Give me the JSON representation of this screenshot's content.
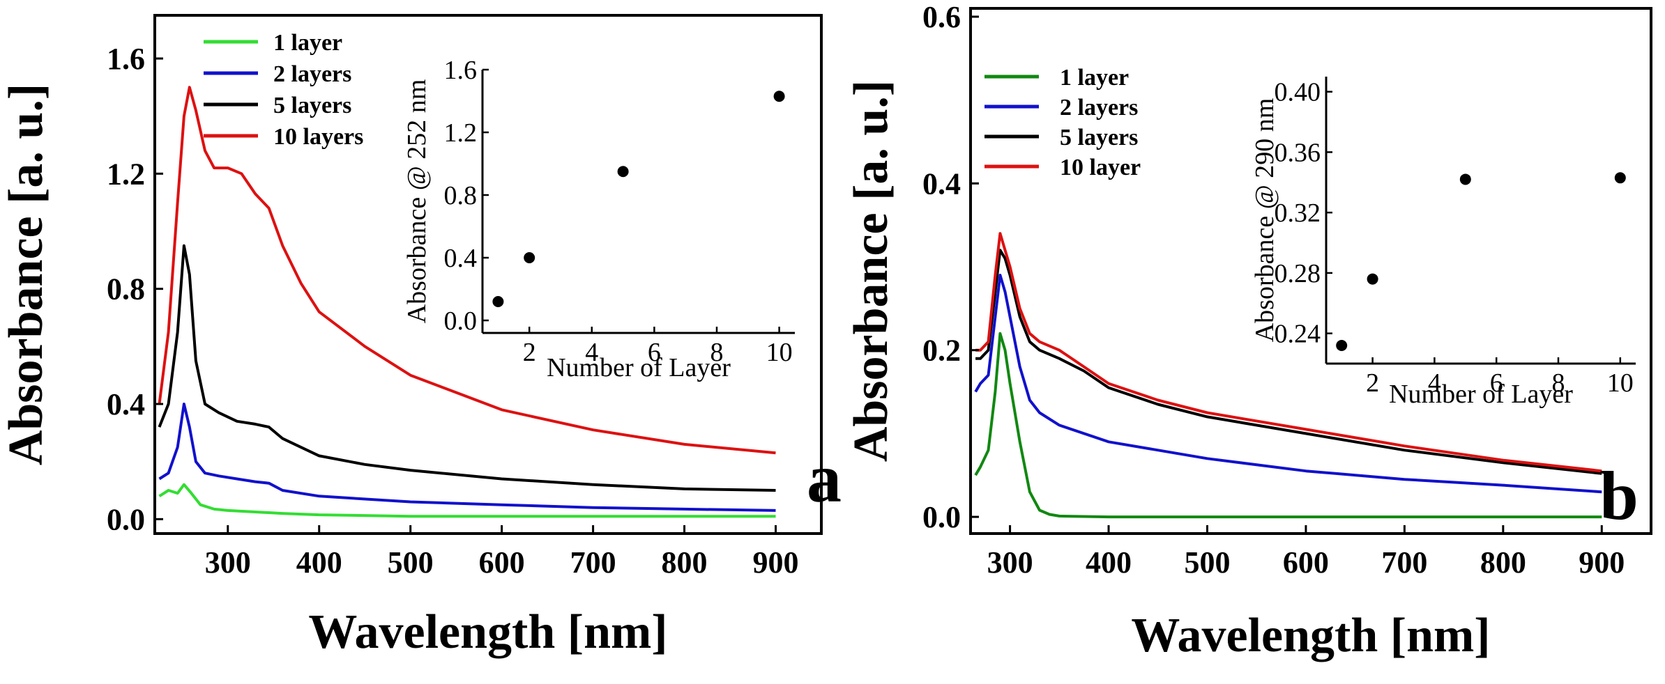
{
  "chart_data": [
    {
      "type": "line",
      "panel_label": "a",
      "xlabel": "Wavelength [nm]",
      "ylabel": "Absorbance [a. u.]",
      "xlim": [
        220,
        950
      ],
      "ylim": [
        -0.05,
        1.75
      ],
      "x_ticks": [
        300,
        400,
        500,
        600,
        700,
        800,
        900
      ],
      "y_ticks": [
        0.0,
        0.4,
        0.8,
        1.2,
        1.6
      ],
      "x_tick_labels": [
        "300",
        "400",
        "500",
        "600",
        "700",
        "800",
        "900"
      ],
      "y_tick_labels": [
        "0.0",
        "0.4",
        "0.8",
        "1.2",
        "1.6"
      ],
      "legend_position": "top-left",
      "series": [
        {
          "name": "1 layer",
          "color": "#33dd33",
          "x": [
            225,
            235,
            245,
            252,
            260,
            270,
            285,
            300,
            330,
            360,
            400,
            500,
            600,
            700,
            800,
            900
          ],
          "y": [
            0.08,
            0.1,
            0.09,
            0.12,
            0.09,
            0.05,
            0.035,
            0.03,
            0.025,
            0.02,
            0.015,
            0.01,
            0.01,
            0.01,
            0.01,
            0.01
          ]
        },
        {
          "name": "2 layers",
          "color": "#1111cc",
          "x": [
            225,
            235,
            245,
            252,
            258,
            265,
            275,
            290,
            310,
            330,
            345,
            360,
            400,
            500,
            600,
            700,
            800,
            900
          ],
          "y": [
            0.14,
            0.16,
            0.25,
            0.4,
            0.32,
            0.2,
            0.16,
            0.15,
            0.14,
            0.13,
            0.125,
            0.1,
            0.08,
            0.06,
            0.05,
            0.04,
            0.035,
            0.03
          ]
        },
        {
          "name": "5 layers",
          "color": "#000000",
          "x": [
            225,
            235,
            245,
            252,
            258,
            265,
            275,
            290,
            310,
            330,
            345,
            360,
            400,
            450,
            500,
            600,
            700,
            800,
            900
          ],
          "y": [
            0.32,
            0.4,
            0.65,
            0.95,
            0.85,
            0.55,
            0.4,
            0.37,
            0.34,
            0.33,
            0.32,
            0.28,
            0.22,
            0.19,
            0.17,
            0.14,
            0.12,
            0.105,
            0.1
          ]
        },
        {
          "name": "10 layers",
          "color": "#dd1111",
          "x": [
            225,
            235,
            245,
            252,
            258,
            265,
            275,
            285,
            300,
            315,
            330,
            345,
            360,
            380,
            400,
            450,
            500,
            550,
            600,
            700,
            800,
            900
          ],
          "y": [
            0.4,
            0.65,
            1.1,
            1.4,
            1.5,
            1.42,
            1.28,
            1.22,
            1.22,
            1.2,
            1.13,
            1.08,
            0.95,
            0.82,
            0.72,
            0.6,
            0.5,
            0.44,
            0.38,
            0.31,
            0.26,
            0.23
          ]
        }
      ],
      "inset": {
        "type": "scatter",
        "xlabel": "Number of Layer",
        "ylabel": "Absorbance @ 252 nm",
        "xlim": [
          0.5,
          10.5
        ],
        "ylim": [
          -0.08,
          1.6
        ],
        "x_ticks": [
          2,
          4,
          6,
          8,
          10
        ],
        "y_ticks": [
          0.0,
          0.4,
          0.8,
          1.2,
          1.6
        ],
        "x_tick_labels": [
          "2",
          "4",
          "6",
          "8",
          "10"
        ],
        "y_tick_labels": [
          "0.0",
          "0.4",
          "0.8",
          "1.2",
          "1.6"
        ],
        "x": [
          1,
          2,
          5,
          10
        ],
        "y": [
          0.12,
          0.4,
          0.95,
          1.43
        ]
      }
    },
    {
      "type": "line",
      "panel_label": "b",
      "xlabel": "Wavelength [nm]",
      "ylabel": "Absorbance [a. u.]",
      "xlim": [
        260,
        950
      ],
      "ylim": [
        -0.02,
        0.61
      ],
      "x_ticks": [
        300,
        400,
        500,
        600,
        700,
        800,
        900
      ],
      "y_ticks": [
        0.0,
        0.2,
        0.4,
        0.6
      ],
      "x_tick_labels": [
        "300",
        "400",
        "500",
        "600",
        "700",
        "800",
        "900"
      ],
      "y_tick_labels": [
        "0.0",
        "0.2",
        "0.4",
        "0.6"
      ],
      "legend_position": "top-left",
      "series": [
        {
          "name": "1  layer",
          "color": "#118811",
          "x": [
            265,
            270,
            278,
            285,
            290,
            295,
            300,
            310,
            320,
            330,
            340,
            350,
            400,
            500,
            600,
            700,
            800,
            900
          ],
          "y": [
            0.05,
            0.06,
            0.08,
            0.15,
            0.22,
            0.2,
            0.16,
            0.09,
            0.03,
            0.008,
            0.003,
            0.001,
            0.0,
            0.0,
            0.0,
            0.0,
            0.0,
            0.0
          ]
        },
        {
          "name": "2  layers",
          "color": "#1111cc",
          "x": [
            265,
            270,
            278,
            285,
            290,
            295,
            300,
            310,
            320,
            330,
            350,
            400,
            500,
            600,
            700,
            800,
            900
          ],
          "y": [
            0.15,
            0.16,
            0.17,
            0.24,
            0.29,
            0.27,
            0.24,
            0.18,
            0.14,
            0.125,
            0.11,
            0.09,
            0.07,
            0.055,
            0.045,
            0.038,
            0.03
          ]
        },
        {
          "name": " 5  layers",
          "color": "#000000",
          "x": [
            265,
            270,
            278,
            285,
            290,
            295,
            300,
            310,
            320,
            330,
            350,
            375,
            400,
            450,
            500,
            600,
            700,
            800,
            900
          ],
          "y": [
            0.19,
            0.19,
            0.2,
            0.27,
            0.32,
            0.31,
            0.29,
            0.24,
            0.21,
            0.2,
            0.19,
            0.175,
            0.155,
            0.135,
            0.12,
            0.1,
            0.08,
            0.065,
            0.052
          ]
        },
        {
          "name": "10  layer",
          "color": "#dd1111",
          "x": [
            265,
            270,
            278,
            285,
            290,
            295,
            300,
            310,
            320,
            330,
            350,
            375,
            400,
            450,
            500,
            600,
            700,
            800,
            900
          ],
          "y": [
            0.2,
            0.2,
            0.21,
            0.29,
            0.34,
            0.32,
            0.3,
            0.25,
            0.22,
            0.21,
            0.2,
            0.18,
            0.16,
            0.14,
            0.125,
            0.105,
            0.085,
            0.068,
            0.055
          ]
        }
      ],
      "inset": {
        "type": "scatter",
        "xlabel": "Number of Layer",
        "ylabel": "Absorbance @ 290 nm",
        "xlim": [
          0.5,
          10.5
        ],
        "ylim": [
          0.22,
          0.41
        ],
        "x_ticks": [
          2,
          4,
          6,
          8,
          10
        ],
        "y_ticks": [
          0.24,
          0.28,
          0.32,
          0.36,
          0.4
        ],
        "x_tick_labels": [
          "2",
          "4",
          "6",
          "8",
          "10"
        ],
        "y_tick_labels": [
          "0.24",
          "0.28",
          "0.32",
          "0.36",
          "0.40"
        ],
        "x": [
          1,
          2,
          5,
          10
        ],
        "y": [
          0.232,
          0.276,
          0.342,
          0.343
        ]
      }
    }
  ]
}
